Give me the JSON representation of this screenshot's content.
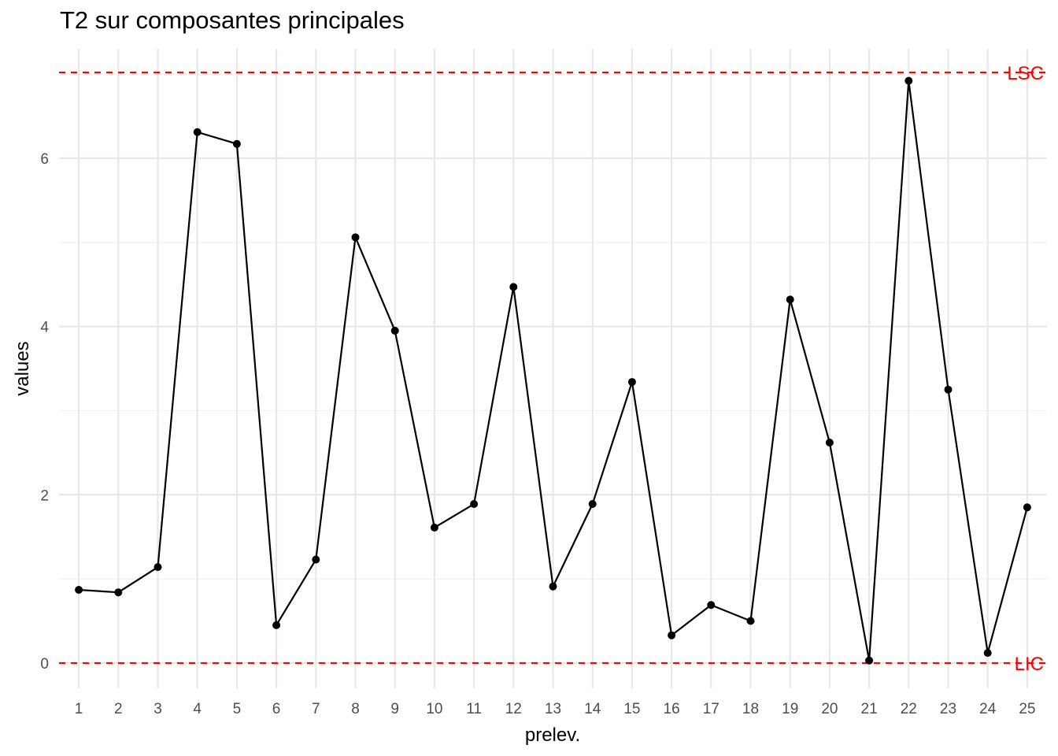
{
  "chart_data": {
    "type": "line",
    "title": "T2 sur composantes principales",
    "xlabel": "prelev.",
    "ylabel": "values",
    "x": [
      1,
      2,
      3,
      4,
      5,
      6,
      7,
      8,
      9,
      10,
      11,
      12,
      13,
      14,
      15,
      16,
      17,
      18,
      19,
      20,
      21,
      22,
      23,
      24,
      25
    ],
    "values": [
      0.87,
      0.84,
      1.14,
      6.31,
      6.17,
      0.45,
      1.23,
      5.06,
      3.95,
      1.61,
      1.89,
      4.47,
      0.91,
      1.89,
      3.34,
      0.33,
      0.69,
      0.5,
      4.32,
      2.62,
      0.03,
      6.92,
      3.25,
      0.12,
      1.85
    ],
    "xlim": [
      0.5,
      25.5
    ],
    "ylim": [
      -0.3,
      7.3
    ],
    "yticks": [
      0,
      2,
      4,
      6
    ],
    "grid": true,
    "limits": [
      {
        "label": "LSC",
        "value": 7.02,
        "color": "#ff0000"
      },
      {
        "label": "LIC",
        "value": 0,
        "color": "#ff0000"
      }
    ],
    "series_color": "#000000"
  }
}
